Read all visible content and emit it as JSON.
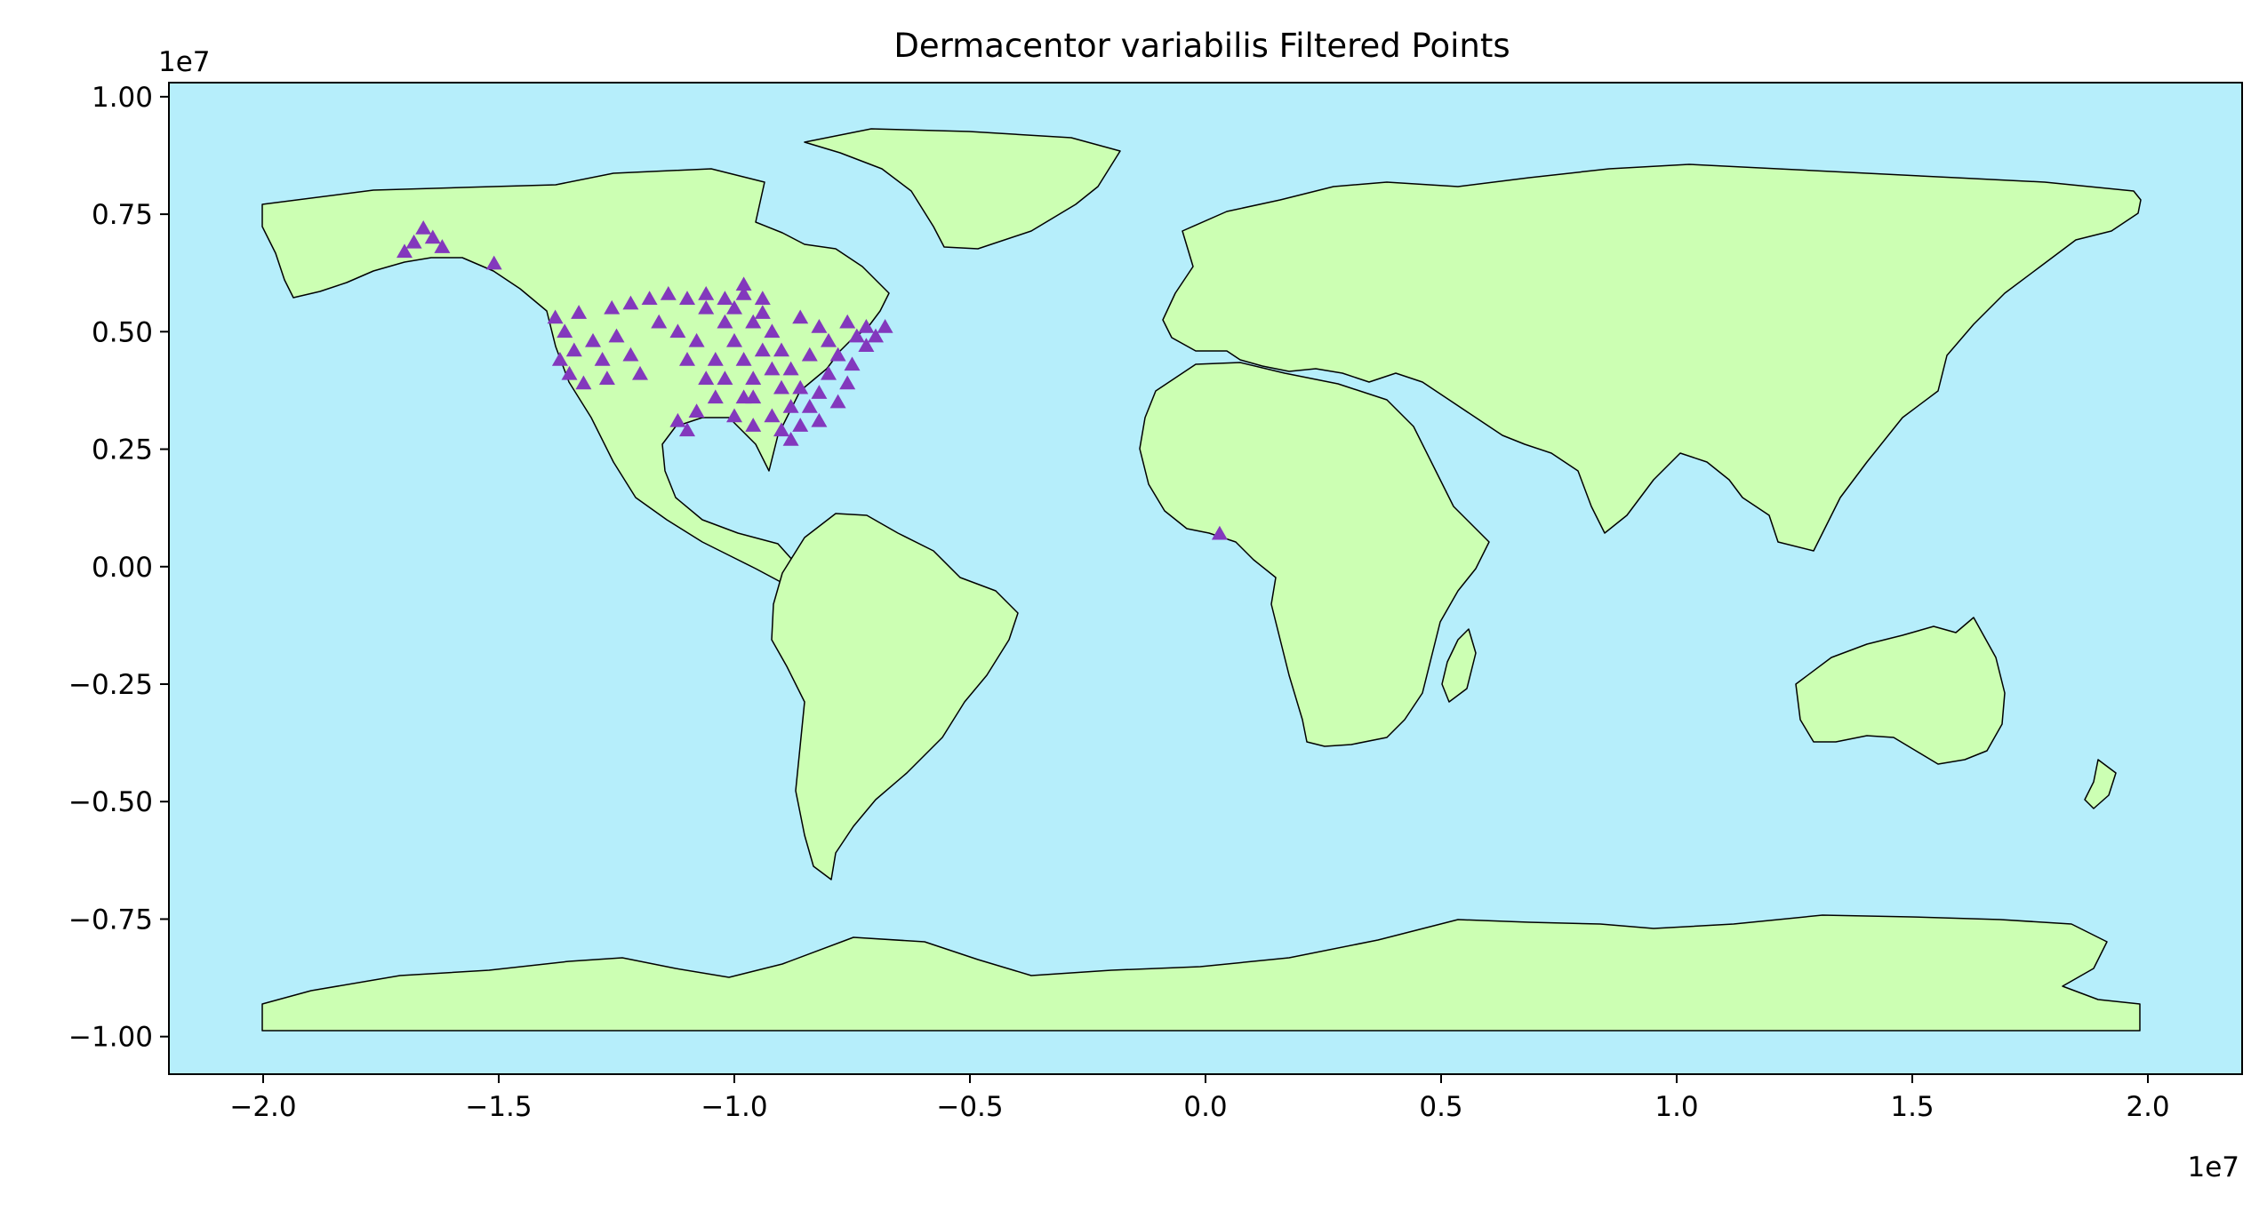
{
  "chart_data": {
    "type": "scatter",
    "title": "Dermacentor variabilis Filtered Points",
    "xlabel": "",
    "ylabel": "",
    "x_offset_label": "1e7",
    "y_offset_label": "1e7",
    "xlim": [
      -2.2,
      2.2
    ],
    "ylim": [
      -1.08,
      1.03
    ],
    "x_ticks": [
      -2.0,
      -1.5,
      -1.0,
      -0.5,
      0.0,
      0.5,
      1.0,
      1.5,
      2.0
    ],
    "x_tick_labels": [
      "−2.0",
      "−1.5",
      "−1.0",
      "−0.5",
      "0.0",
      "0.5",
      "1.0",
      "1.5",
      "2.0"
    ],
    "y_ticks": [
      1.0,
      0.75,
      0.5,
      0.25,
      0.0,
      -0.25,
      -0.5,
      -0.75,
      -1.0
    ],
    "y_tick_labels": [
      "1.00",
      "0.75",
      "0.50",
      "0.25",
      "0.00",
      "−0.25",
      "−0.50",
      "−0.75",
      "−1.00"
    ],
    "grid": false,
    "legend": "none",
    "colors": {
      "ocean": "#b6eefb",
      "land": "#ccffb3",
      "border": "#000000",
      "points": "#8338bd"
    },
    "marker": "triangle",
    "series": [
      {
        "points": [
          [
            -1.66,
            0.72
          ],
          [
            -1.68,
            0.69
          ],
          [
            -1.64,
            0.7
          ],
          [
            -1.7,
            0.67
          ],
          [
            -1.62,
            0.68
          ],
          [
            -1.51,
            0.645
          ],
          [
            -1.38,
            0.53
          ],
          [
            -1.36,
            0.5
          ],
          [
            -1.34,
            0.46
          ],
          [
            -1.37,
            0.44
          ],
          [
            -1.35,
            0.41
          ],
          [
            -1.32,
            0.39
          ],
          [
            -1.33,
            0.54
          ],
          [
            -1.3,
            0.48
          ],
          [
            -1.28,
            0.44
          ],
          [
            -1.25,
            0.49
          ],
          [
            -1.22,
            0.45
          ],
          [
            -1.2,
            0.41
          ],
          [
            -1.27,
            0.4
          ],
          [
            -1.26,
            0.55
          ],
          [
            -1.22,
            0.56
          ],
          [
            -1.18,
            0.57
          ],
          [
            -1.14,
            0.58
          ],
          [
            -1.1,
            0.57
          ],
          [
            -1.06,
            0.58
          ],
          [
            -1.02,
            0.57
          ],
          [
            -0.98,
            0.58
          ],
          [
            -0.94,
            0.57
          ],
          [
            -1.16,
            0.52
          ],
          [
            -1.12,
            0.5
          ],
          [
            -1.08,
            0.48
          ],
          [
            -1.1,
            0.44
          ],
          [
            -1.06,
            0.4
          ],
          [
            -1.04,
            0.36
          ],
          [
            -1.08,
            0.33
          ],
          [
            -1.12,
            0.31
          ],
          [
            -1.1,
            0.29
          ],
          [
            -1.02,
            0.52
          ],
          [
            -1.0,
            0.48
          ],
          [
            -0.98,
            0.44
          ],
          [
            -0.96,
            0.4
          ],
          [
            -0.98,
            0.36
          ],
          [
            -1.0,
            0.32
          ],
          [
            -0.96,
            0.3
          ],
          [
            -0.92,
            0.32
          ],
          [
            -0.9,
            0.29
          ],
          [
            -0.86,
            0.3
          ],
          [
            -0.88,
            0.27
          ],
          [
            -0.94,
            0.54
          ],
          [
            -0.92,
            0.5
          ],
          [
            -0.9,
            0.46
          ],
          [
            -0.88,
            0.42
          ],
          [
            -0.86,
            0.38
          ],
          [
            -0.84,
            0.34
          ],
          [
            -0.82,
            0.31
          ],
          [
            -0.86,
            0.53
          ],
          [
            -0.82,
            0.51
          ],
          [
            -0.8,
            0.48
          ],
          [
            -0.78,
            0.45
          ],
          [
            -0.8,
            0.41
          ],
          [
            -0.82,
            0.37
          ],
          [
            -0.78,
            0.35
          ],
          [
            -0.76,
            0.39
          ],
          [
            -0.76,
            0.52
          ],
          [
            -0.74,
            0.49
          ],
          [
            -0.72,
            0.51
          ],
          [
            -0.7,
            0.49
          ],
          [
            -0.68,
            0.51
          ],
          [
            -0.72,
            0.47
          ],
          [
            -0.75,
            0.43
          ],
          [
            -1.06,
            0.55
          ],
          [
            -1.0,
            0.55
          ],
          [
            -0.96,
            0.52
          ],
          [
            -1.04,
            0.44
          ],
          [
            -0.94,
            0.46
          ],
          [
            -0.9,
            0.38
          ],
          [
            -0.92,
            0.42
          ],
          [
            -1.02,
            0.4
          ],
          [
            -0.84,
            0.45
          ],
          [
            -0.96,
            0.36
          ],
          [
            -0.88,
            0.34
          ],
          [
            -0.98,
            0.6
          ],
          [
            0.03,
            0.07
          ]
        ]
      }
    ]
  }
}
